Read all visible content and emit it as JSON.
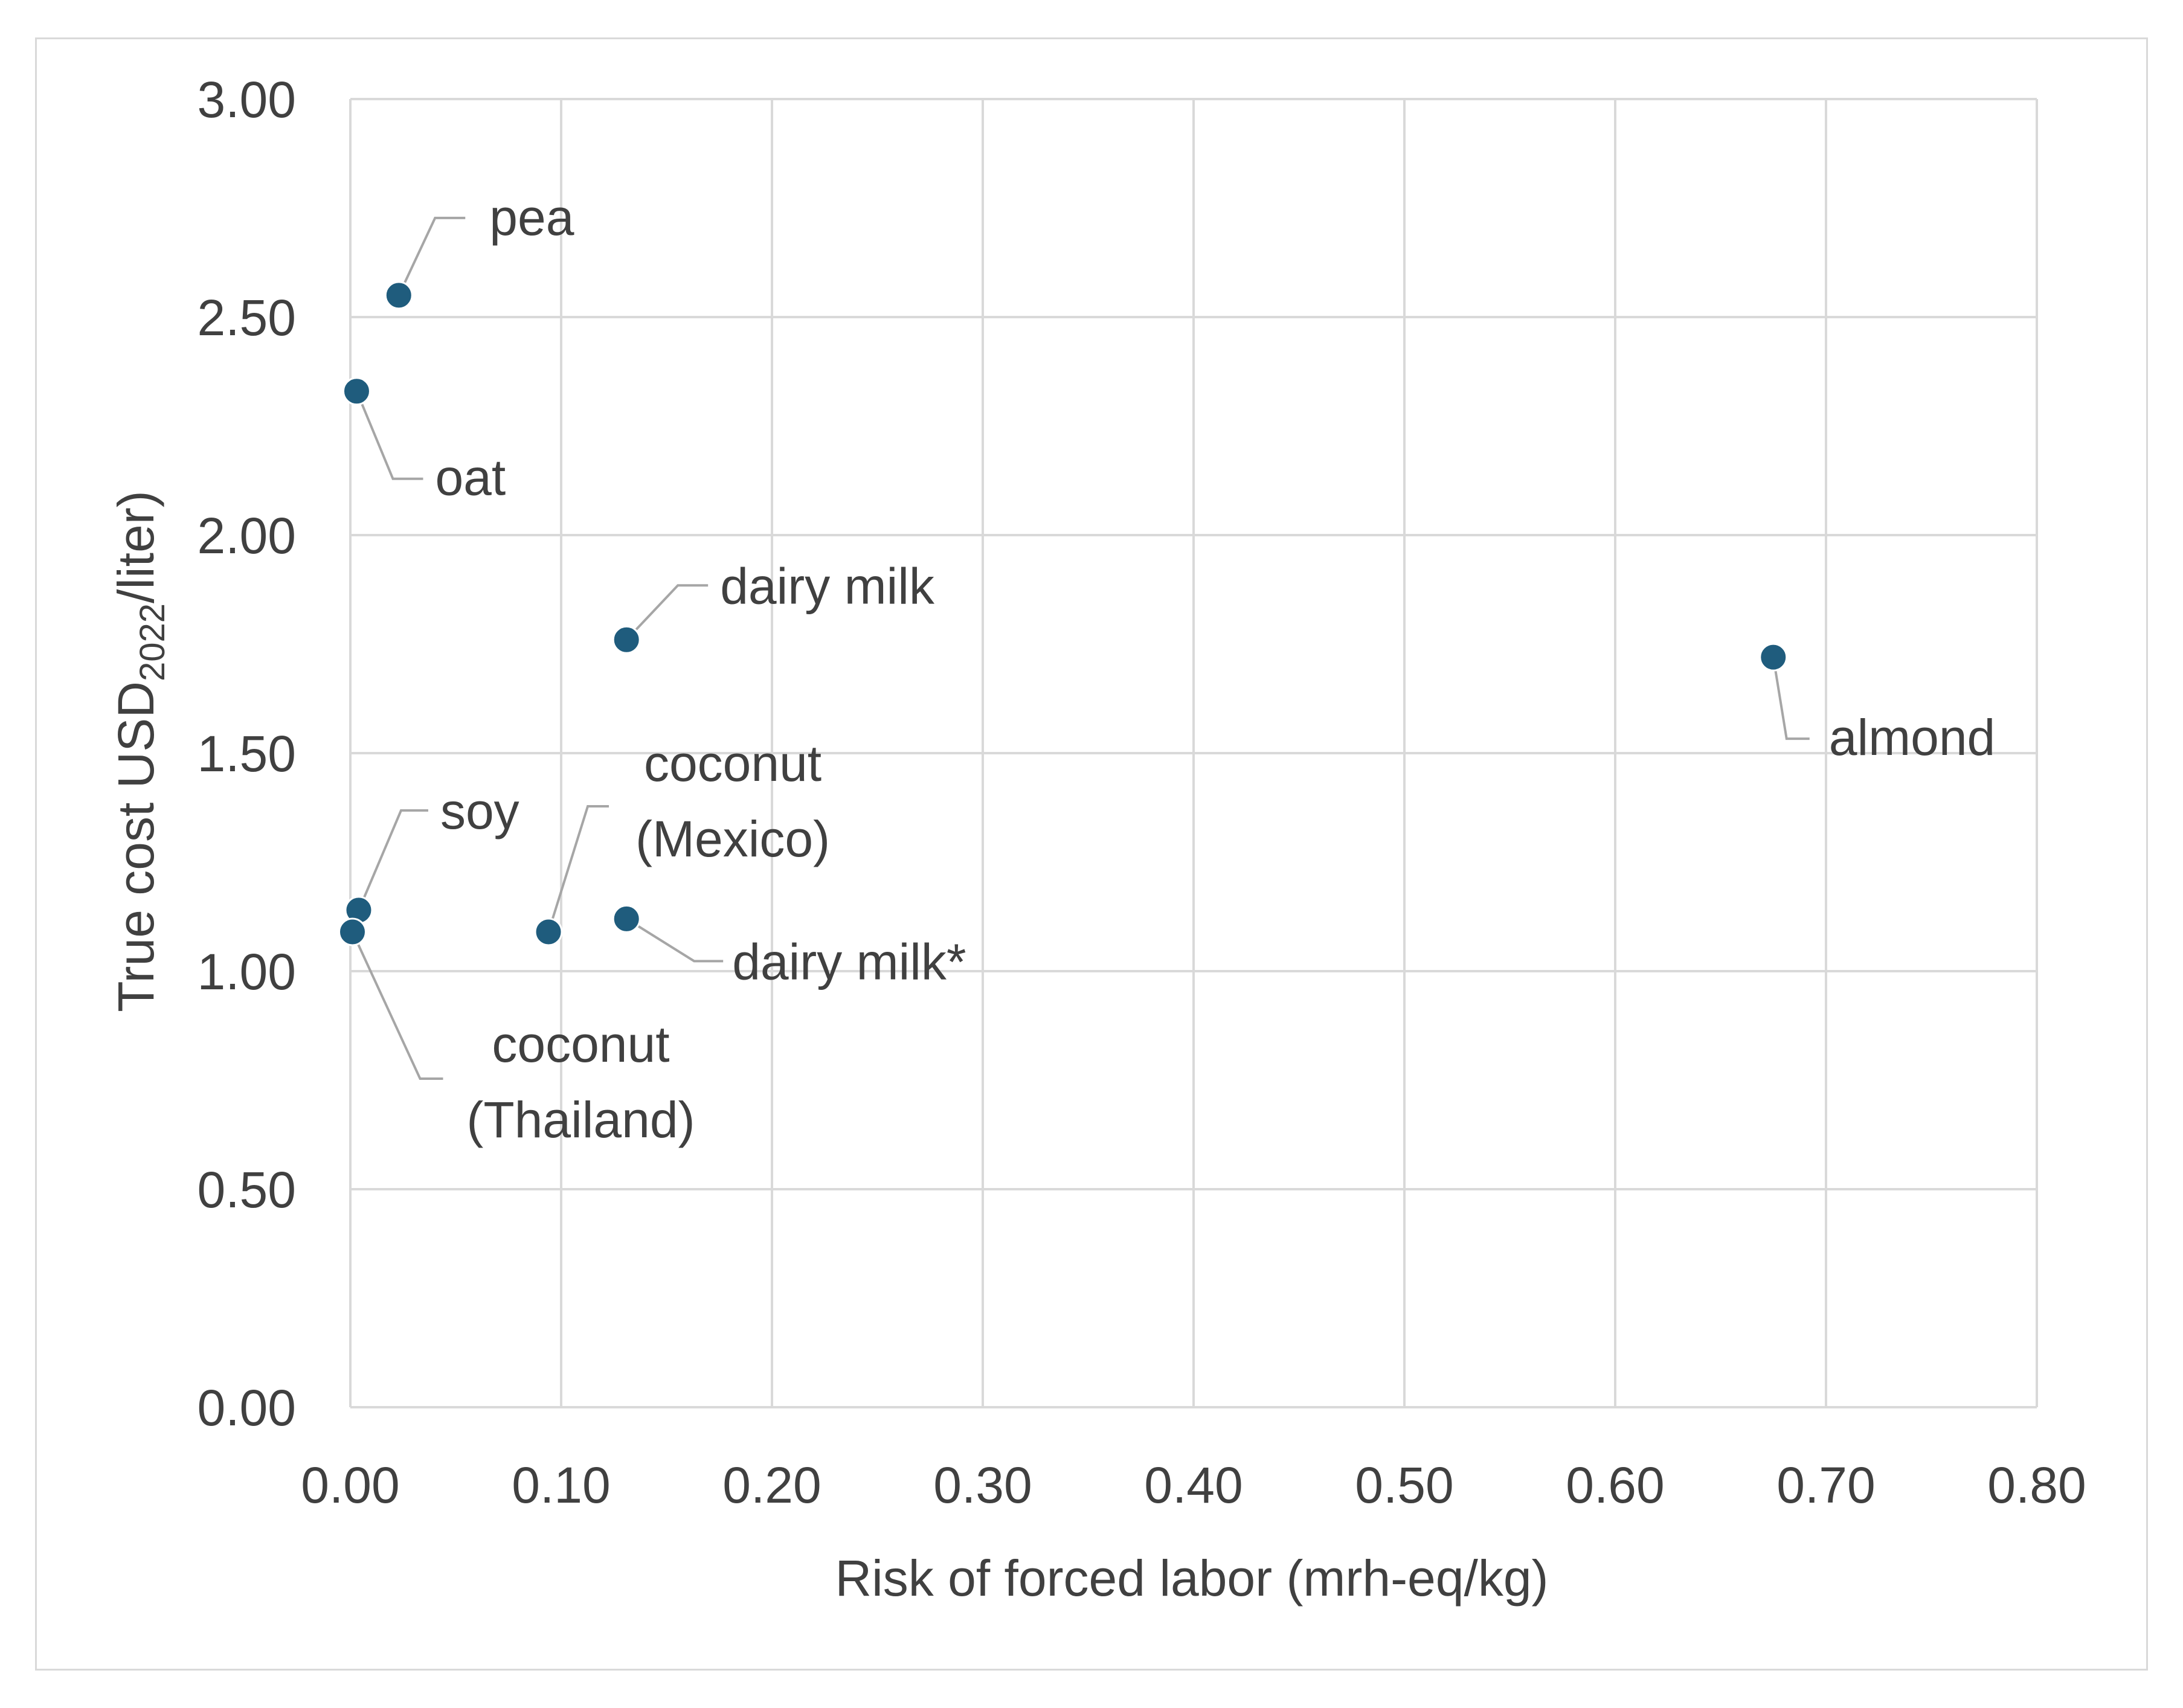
{
  "chart_data": {
    "type": "scatter",
    "title": "",
    "xlabel": "Risk of forced labor (mrh-eq/kg)",
    "ylabel": {
      "prefix": "True cost USD",
      "subscript": "2022",
      "suffix": "/liter)"
    },
    "xlim": [
      0,
      0.8
    ],
    "ylim": [
      0,
      3.0
    ],
    "x_ticks": [
      "0.00",
      "0.10",
      "0.20",
      "0.30",
      "0.40",
      "0.50",
      "0.60",
      "0.70",
      "0.80"
    ],
    "y_ticks": [
      "0.00",
      "0.50",
      "1.00",
      "1.50",
      "2.00",
      "2.50",
      "3.00"
    ],
    "grid": true,
    "marker_color": "#1f5c7d",
    "points": [
      {
        "name": "pea",
        "label_lines": [
          "pea"
        ],
        "x": 0.023,
        "y": 2.55
      },
      {
        "name": "oat",
        "label_lines": [
          "oat"
        ],
        "x": 0.003,
        "y": 2.33
      },
      {
        "name": "dairy milk",
        "label_lines": [
          "dairy milk"
        ],
        "x": 0.131,
        "y": 1.76
      },
      {
        "name": "almond",
        "label_lines": [
          "almond"
        ],
        "x": 0.675,
        "y": 1.72
      },
      {
        "name": "soy",
        "label_lines": [
          "soy"
        ],
        "x": 0.004,
        "y": 1.14
      },
      {
        "name": "coconut (Mexico)",
        "label_lines": [
          "coconut",
          "(Mexico)"
        ],
        "x": 0.094,
        "y": 1.09
      },
      {
        "name": "dairy milk*",
        "label_lines": [
          "dairy milk*"
        ],
        "x": 0.131,
        "y": 1.12
      },
      {
        "name": "coconut (Thailand)",
        "label_lines": [
          "coconut",
          "(Thailand)"
        ],
        "x": 0.001,
        "y": 1.09
      }
    ]
  }
}
